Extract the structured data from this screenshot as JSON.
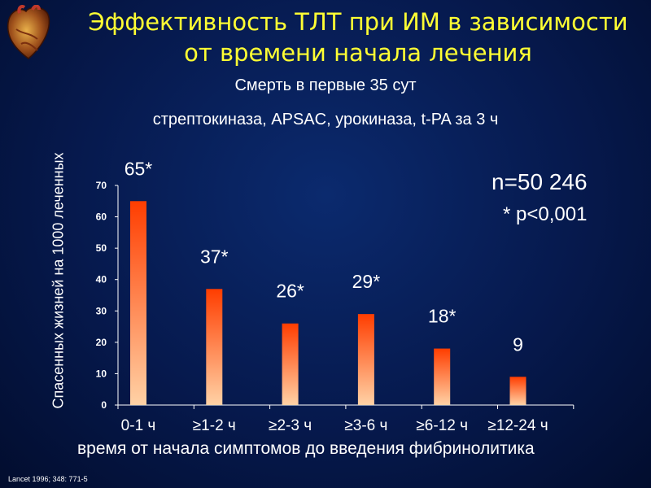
{
  "title": "Эффективность ТЛТ  при ИМ в зависимости от времени начала лечения",
  "subtitle1": "Смерть в первые 35 сут",
  "subtitle2": "стрептокиназа, APSAC, урокиназа, t-PA за 3 ч",
  "n_note": "n=50 246",
  "p_note": "* p<0,001",
  "reference": "Lancet 1996; 348: 771-5",
  "logo_icon": "heart-icon",
  "colors": {
    "title": "#ffff33",
    "bar_top": "#ff3d00",
    "bar_bottom": "#ffd2a6",
    "background": "#06194d"
  },
  "chart_data": {
    "type": "bar",
    "categories": [
      "0-1 ч",
      "≥1-2 ч",
      "≥2-3 ч",
      "≥3-6 ч",
      "≥6-12 ч",
      "≥12-24 ч"
    ],
    "values": [
      65,
      37,
      26,
      29,
      18,
      9
    ],
    "data_labels": [
      "65*",
      "37*",
      "26*",
      "29*",
      "18*",
      "9"
    ],
    "xlabel": "время от начала симптомов до введения фибринолитика",
    "ylabel": "Спасенных  жизней на 1000 леченных",
    "ylim": [
      0,
      70
    ],
    "yticks": [
      0,
      10,
      20,
      30,
      40,
      50,
      60,
      70
    ],
    "grid": false,
    "legend": "none"
  }
}
